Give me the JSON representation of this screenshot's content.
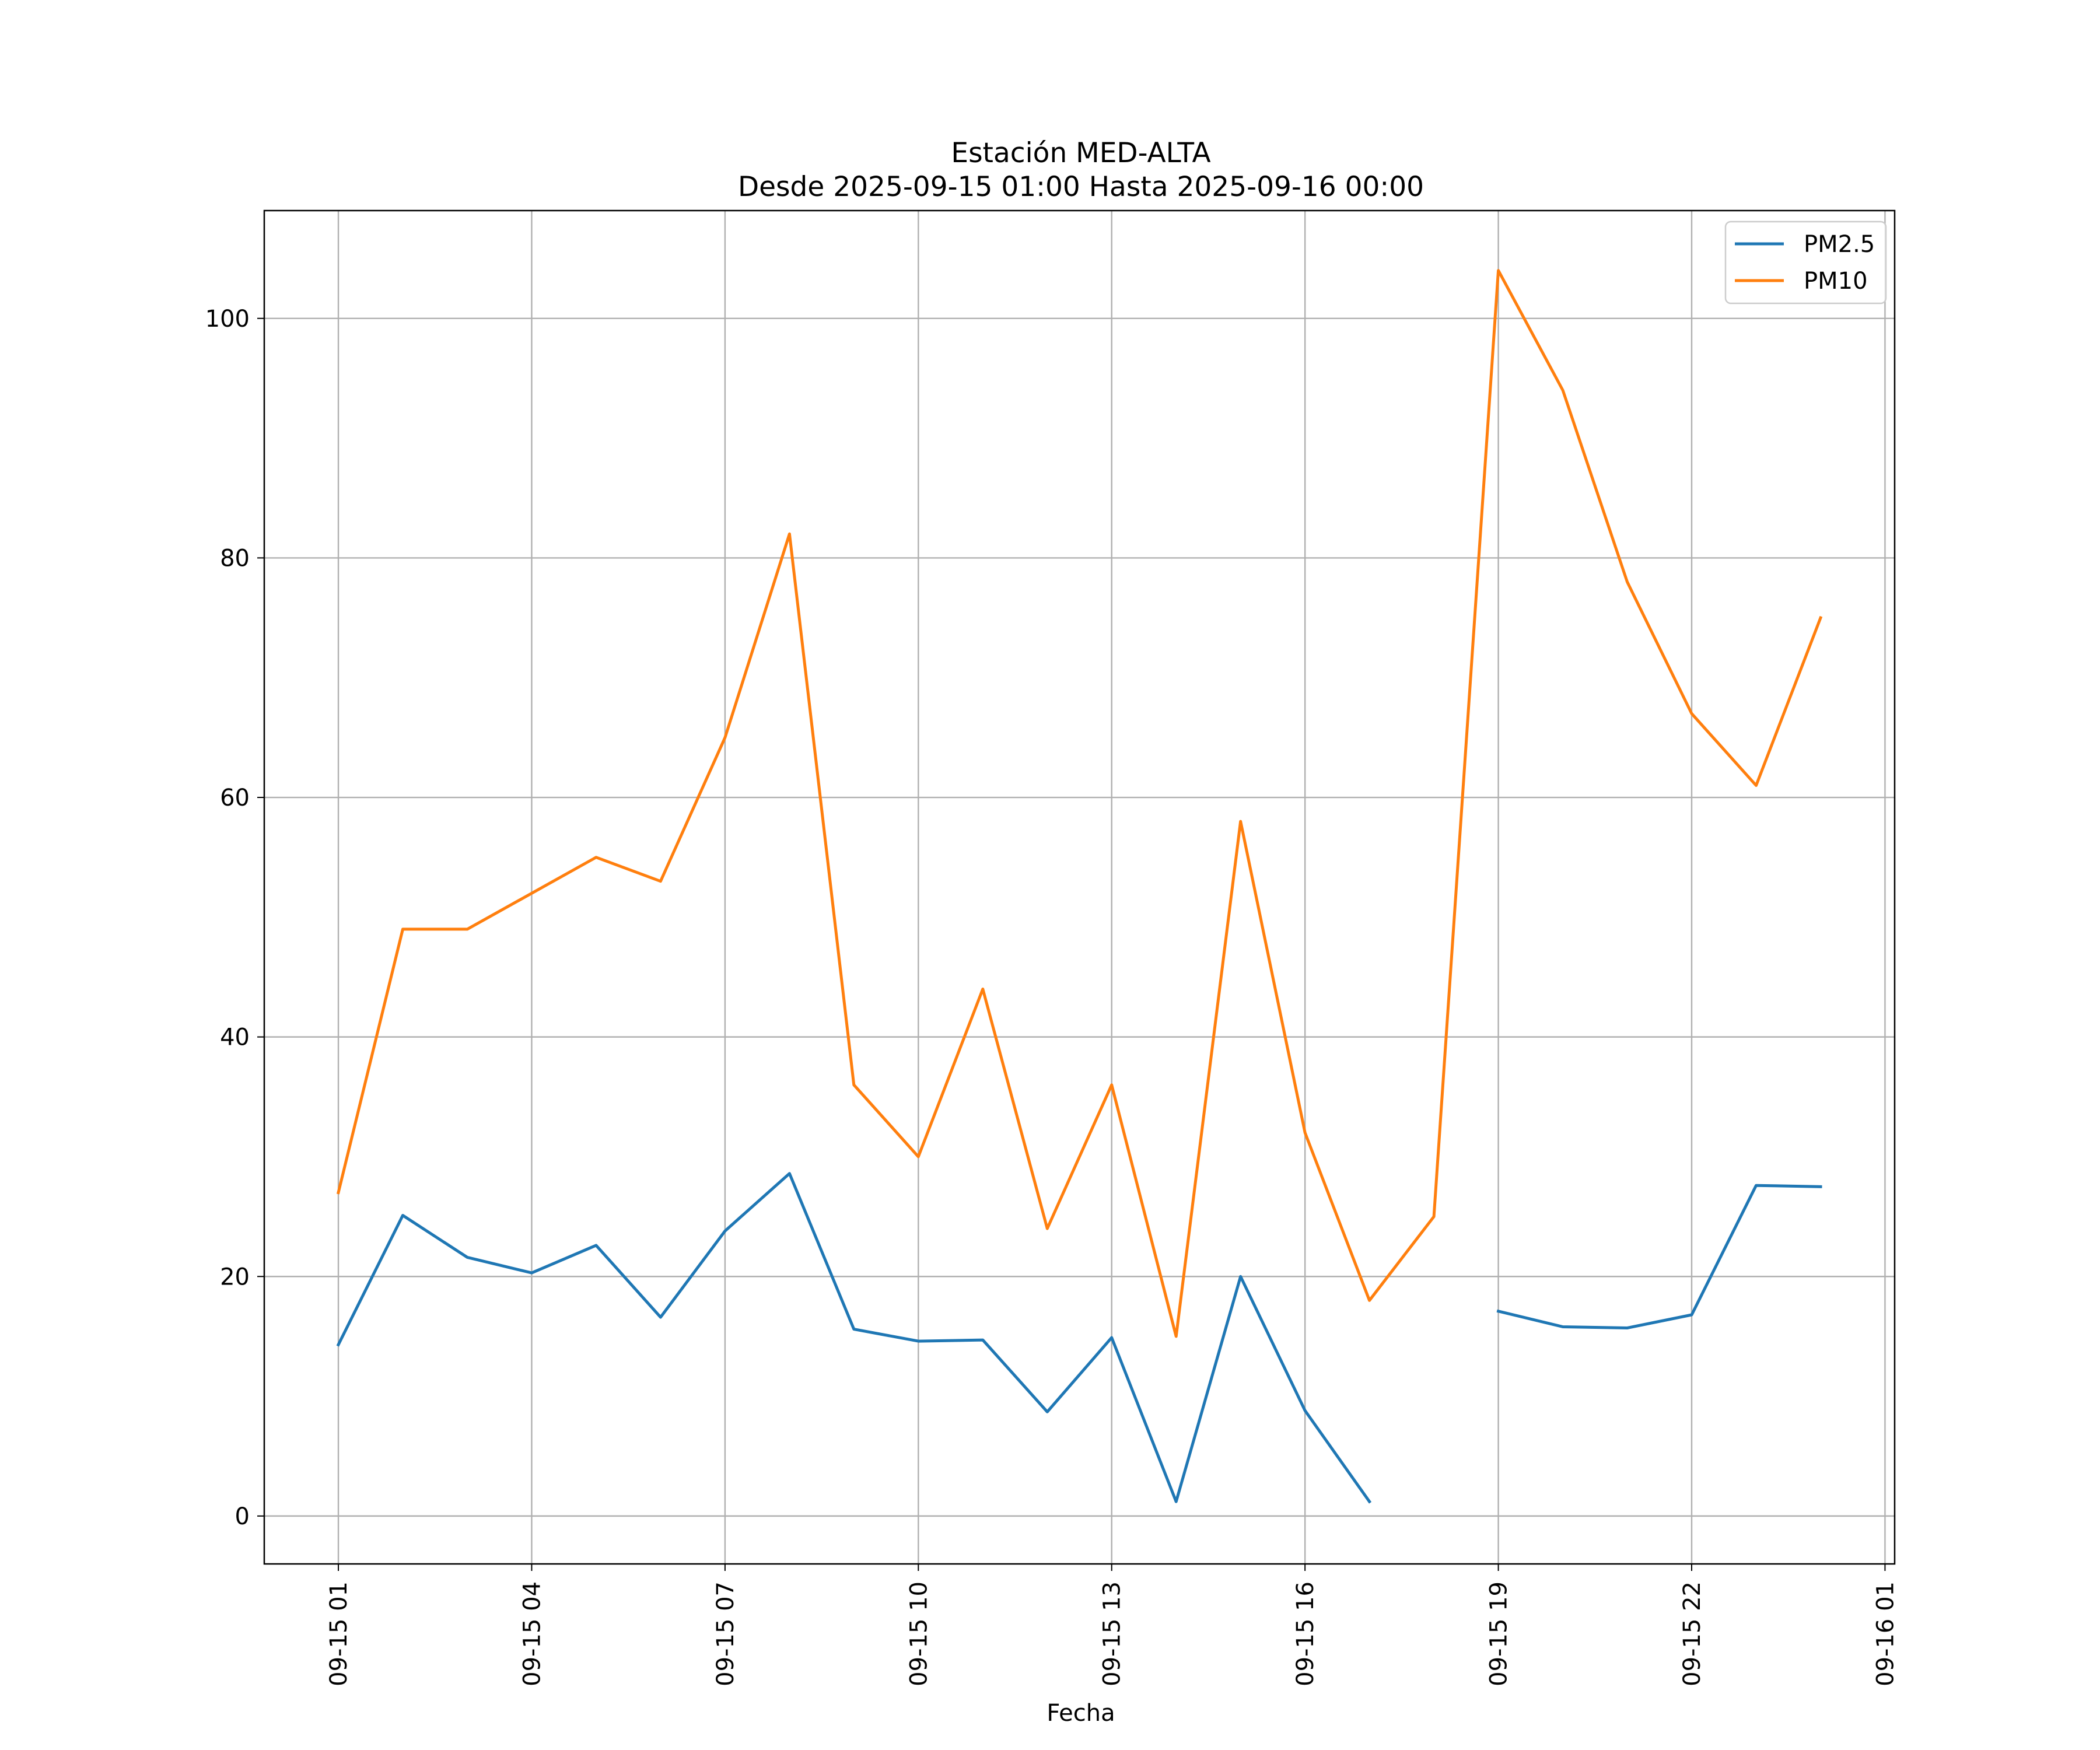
{
  "chart_data": {
    "type": "line",
    "title": "Estación MED-ALTA",
    "subtitle": "Desde 2025-09-15 01:00 Hasta 2025-09-16 00:00",
    "xlabel": "Fecha",
    "ylabel": "",
    "x": [
      "09-15 01:00",
      "09-15 02:00",
      "09-15 03:00",
      "09-15 04:00",
      "09-15 05:00",
      "09-15 06:00",
      "09-15 07:00",
      "09-15 08:00",
      "09-15 09:00",
      "09-15 10:00",
      "09-15 11:00",
      "09-15 12:00",
      "09-15 13:00",
      "09-15 14:00",
      "09-15 15:00",
      "09-15 16:00",
      "09-15 17:00",
      "09-15 18:00",
      "09-15 19:00",
      "09-15 20:00",
      "09-15 21:00",
      "09-15 22:00",
      "09-15 23:00",
      "09-16 00:00"
    ],
    "x_hours": [
      1,
      2,
      3,
      4,
      5,
      6,
      7,
      8,
      9,
      10,
      11,
      12,
      13,
      14,
      15,
      16,
      17,
      18,
      19,
      20,
      21,
      22,
      23,
      24
    ],
    "xlim_hours": [
      -0.15,
      25.15
    ],
    "x_ticks": [
      {
        "label": "09-15 01",
        "hour": 1
      },
      {
        "label": "09-15 04",
        "hour": 4
      },
      {
        "label": "09-15 07",
        "hour": 7
      },
      {
        "label": "09-15 10",
        "hour": 10
      },
      {
        "label": "09-15 13",
        "hour": 13
      },
      {
        "label": "09-15 16",
        "hour": 16
      },
      {
        "label": "09-15 19",
        "hour": 19
      },
      {
        "label": "09-15 22",
        "hour": 22
      },
      {
        "label": "09-16 01",
        "hour": 25
      }
    ],
    "ylim": [
      -4,
      109
    ],
    "y_ticks": [
      0,
      20,
      40,
      60,
      80,
      100
    ],
    "grid": true,
    "legend_position": "top-right",
    "series": [
      {
        "name": "PM2.5",
        "color": "#1f77b4",
        "values": [
          14.3,
          25.1,
          21.6,
          20.3,
          22.6,
          16.6,
          23.8,
          28.6,
          15.6,
          14.6,
          14.7,
          8.7,
          14.9,
          1.2,
          20.0,
          8.8,
          1.2,
          null,
          17.1,
          15.8,
          15.7,
          16.8,
          27.6,
          27.5
        ]
      },
      {
        "name": "PM10",
        "color": "#ff7f0e",
        "values": [
          27,
          49,
          49,
          52,
          55,
          53,
          65,
          82,
          36,
          30,
          44,
          24,
          36,
          15,
          58,
          32,
          18,
          25,
          104,
          94,
          78,
          67,
          61,
          75
        ]
      }
    ]
  }
}
